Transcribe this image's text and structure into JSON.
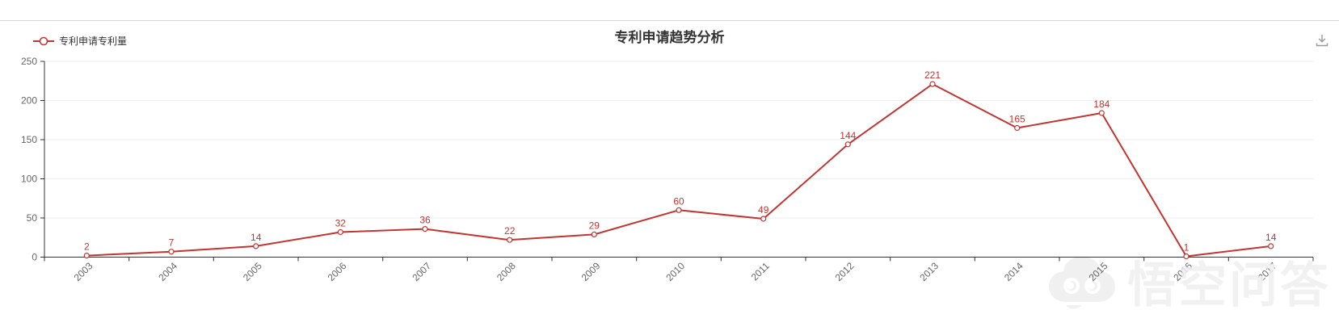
{
  "header": {
    "divider": true
  },
  "watermark": {
    "text": "悟空问答"
  },
  "colors": {
    "series": "#c23531",
    "marker_fill": "#ffffff",
    "data_label": "#c23531",
    "axis_line": "#333333",
    "axis_label": "#666666",
    "grid_line": "#eeeeee",
    "title_text": "#333333",
    "legend_text": "#333333",
    "divider": "#d9d9d9",
    "toolbox_icon": "#999999"
  },
  "chart_data": {
    "type": "line",
    "title": "专利申请趋势分析",
    "categories": [
      "2003",
      "2004",
      "2005",
      "2006",
      "2007",
      "2008",
      "2009",
      "2010",
      "2011",
      "2012",
      "2013",
      "2014",
      "2015",
      "2016",
      "2017"
    ],
    "series": [
      {
        "name": "专利申请专利量",
        "values": [
          2,
          7,
          14,
          32,
          36,
          22,
          29,
          60,
          49,
          144,
          221,
          165,
          184,
          1,
          14
        ]
      }
    ],
    "xlabel": "",
    "ylabel": "",
    "ylim": [
      0,
      250
    ],
    "yticks": [
      0,
      50,
      100,
      150,
      200,
      250
    ],
    "grid": true,
    "legend_position": "top-left",
    "x_label_rotate": 45,
    "data_labels": true,
    "marker": "hollow-circle"
  }
}
